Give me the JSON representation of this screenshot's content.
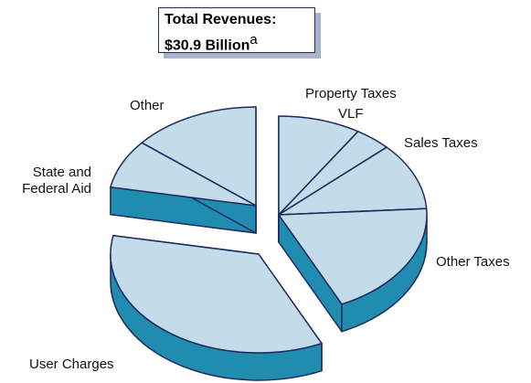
{
  "chart_data": {
    "type": "pie",
    "title": "Total Revenues:",
    "subtitle": "$30.9 Billion",
    "title_note": "a",
    "categories": [
      "Property Taxes",
      "VLF",
      "Sales Taxes",
      "Other Taxes",
      "User Charges",
      "State and Federal Aid",
      "Other"
    ],
    "values": [
      9,
      4,
      11,
      19,
      35,
      8,
      14
    ],
    "colors": {
      "top": "#c4dbea",
      "side": "#1f8cb0",
      "edge": "#1d2b5e"
    }
  }
}
